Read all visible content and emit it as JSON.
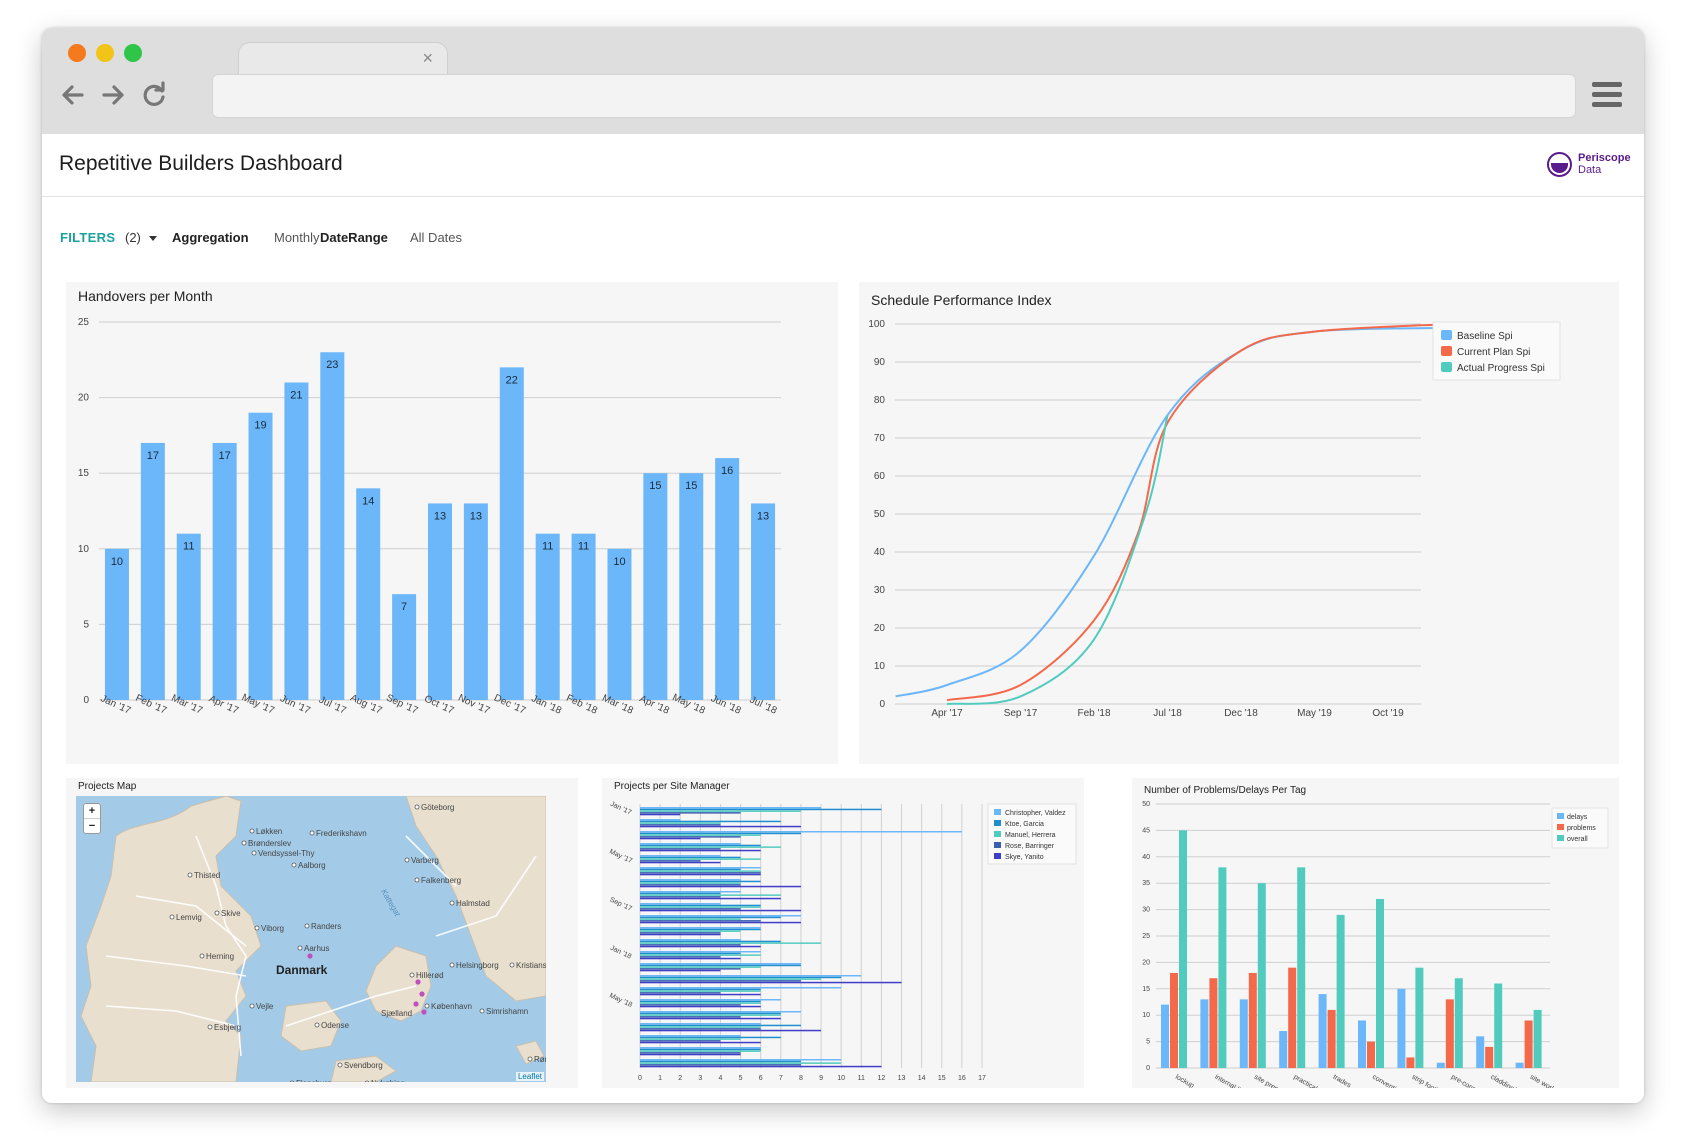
{
  "browser": {
    "traffic_lights": [
      "#f5791d",
      "#f2c418",
      "#2fc549"
    ],
    "tab_close": "×",
    "icons": [
      "back-arrow-icon",
      "forward-arrow-icon",
      "reload-icon",
      "hamburger-menu-icon"
    ]
  },
  "header": {
    "title": "Repetitive Builders Dashboard",
    "logo_line1": "Periscope",
    "logo_line2": "Data"
  },
  "filters": {
    "label": "FILTERS",
    "count": "(2)",
    "aggregation_label": "Aggregation",
    "aggregation_value": "Monthly",
    "daterange_label": "DateRange",
    "daterange_value": "All Dates"
  },
  "colors": {
    "accent": "#1aa39b",
    "bar_blue": "#6cb7f9",
    "red": "#f4694a",
    "teal": "#51cbbe"
  },
  "handovers": {
    "title": "Handovers per Month",
    "chart_data": {
      "type": "bar",
      "categories": [
        "Jan '17",
        "Feb '17",
        "Mar '17",
        "Apr '17",
        "May '17",
        "Jun '17",
        "Jul '17",
        "Aug '17",
        "Sep '17",
        "Oct '17",
        "Nov '17",
        "Dec '17",
        "Jan '18",
        "Feb '18",
        "Mar '18",
        "Apr '18",
        "May '18",
        "Jun '18",
        "Jul '18"
      ],
      "values": [
        10,
        17,
        11,
        17,
        19,
        21,
        23,
        14,
        7,
        13,
        13,
        22,
        11,
        11,
        10,
        15,
        15,
        16,
        13
      ],
      "yticks": [
        0,
        5,
        10,
        15,
        20,
        25
      ],
      "ylim": [
        0,
        25
      ],
      "grid": true
    }
  },
  "spi": {
    "title": "Schedule Performance Index",
    "chart_data": {
      "type": "line",
      "xticks": [
        "Apr '17",
        "Sep '17",
        "Feb '18",
        "Jul '18",
        "Dec '18",
        "May '19",
        "Oct '19"
      ],
      "yticks": [
        0,
        10,
        20,
        30,
        40,
        50,
        60,
        70,
        80,
        90,
        100
      ],
      "ylim": [
        0,
        100
      ],
      "legend_position": "top-right",
      "grid": true,
      "series": [
        {
          "name": "Baseline Spi",
          "color": "#6cb7f9",
          "x_index": [
            -0.7,
            0,
            1,
            2,
            3,
            4,
            5,
            6.9
          ],
          "y": [
            2,
            5,
            14,
            39,
            76,
            93,
            98,
            99
          ]
        },
        {
          "name": "Current Plan Spi",
          "color": "#f4694a",
          "x_index": [
            0,
            1,
            2,
            2.6,
            3,
            4,
            5,
            6.9
          ],
          "y": [
            1,
            5,
            22,
            45,
            74,
            93,
            98,
            100
          ]
        },
        {
          "name": "Actual Progress Spi",
          "color": "#51cbbe",
          "x_index": [
            0,
            1,
            2,
            2.7,
            3
          ],
          "y": [
            0,
            2,
            17,
            50,
            76
          ]
        }
      ]
    }
  },
  "projects_map": {
    "title": "Projects Map",
    "zoom_in": "+",
    "zoom_out": "−",
    "attribution": "Leaflet",
    "places": [
      "Göteborg",
      "Frederikshavn",
      "Løkken",
      "Brønderslev",
      "Vendsyssel-Thy",
      "Aalborg",
      "Thisted",
      "Varberg",
      "Falkenberg",
      "Halmstad",
      "Lemvig",
      "Skive",
      "Viborg",
      "Randers",
      "Aarhus",
      "Herning",
      "Danmark",
      "Helsingborg",
      "Hillerød",
      "Kristianstad",
      "København",
      "Vejle",
      "Sjælland",
      "Esbjerg",
      "Odense",
      "Simrishamn",
      "Svendborg",
      "Rønne",
      "Flensburg",
      "Nykøbing"
    ],
    "sea_label": "Kattegat"
  },
  "site_manager": {
    "title": "Projects per Site Manager",
    "chart_data": {
      "type": "bar",
      "orientation": "horizontal",
      "y_labels": [
        "Jan '17",
        "May '17",
        "Sep '17",
        "Jan '18",
        "May '18"
      ],
      "xticks": [
        0,
        1,
        2,
        3,
        4,
        5,
        6,
        7,
        8,
        9,
        10,
        11,
        12,
        13,
        14,
        15,
        16,
        17
      ],
      "xlim": [
        0,
        17
      ],
      "legend_position": "top-right",
      "series": [
        {
          "name": "Christopher, Valdez",
          "color": "#6cb7f9",
          "values": [
            9,
            2,
            16,
            5,
            4,
            6,
            5,
            5,
            4,
            8,
            6,
            5,
            6,
            8,
            11,
            10,
            7,
            8,
            6,
            5,
            6,
            10
          ]
        },
        {
          "name": "Ktoe, Garcia",
          "color": "#1e8ed0",
          "values": [
            12,
            7,
            8,
            6,
            5,
            5,
            6,
            4,
            6,
            7,
            6,
            7,
            5,
            8,
            10,
            6,
            6,
            7,
            8,
            7,
            6,
            8
          ]
        },
        {
          "name": "Manuel, Herrera",
          "color": "#51cbbe",
          "values": [
            8,
            4,
            6,
            7,
            6,
            6,
            5,
            7,
            6,
            5,
            5,
            9,
            6,
            6,
            9,
            6,
            6,
            7,
            6,
            5,
            6,
            10
          ]
        },
        {
          "name": "Rose, Barringer",
          "color": "#3b5fb0",
          "values": [
            5,
            4,
            5,
            4,
            3,
            6,
            5,
            4,
            5,
            6,
            4,
            5,
            4,
            5,
            8,
            4,
            5,
            5,
            6,
            4,
            5,
            8
          ]
        },
        {
          "name": "Skye, Yanito",
          "color": "#3e3ec8",
          "values": [
            2,
            8,
            3,
            6,
            4,
            6,
            8,
            7,
            8,
            8,
            4,
            6,
            5,
            4,
            13,
            6,
            6,
            7,
            9,
            6,
            5,
            12
          ]
        }
      ]
    }
  },
  "problems": {
    "title": "Number of Problems/Delays Per Tag",
    "chart_data": {
      "type": "bar",
      "categories": [
        "lockup",
        "internal linings",
        "site preparation",
        "practical",
        "trades",
        "conventional |",
        "strip footings",
        "pre-constructio",
        "cladding/ fa",
        "site works"
      ],
      "yticks": [
        0,
        5,
        10,
        15,
        20,
        25,
        30,
        35,
        40,
        45,
        50
      ],
      "ylim": [
        0,
        50
      ],
      "legend_position": "top-right",
      "series": [
        {
          "name": "delays",
          "color": "#6cb7f9",
          "values": [
            12,
            13,
            13,
            7,
            14,
            9,
            15,
            1,
            6,
            1
          ]
        },
        {
          "name": "problems",
          "color": "#f4694a",
          "values": [
            18,
            17,
            18,
            19,
            11,
            5,
            2,
            13,
            4,
            9
          ]
        },
        {
          "name": "overall",
          "color": "#51cbbe",
          "values": [
            45,
            38,
            35,
            38,
            29,
            32,
            19,
            17,
            16,
            11
          ]
        }
      ]
    }
  }
}
